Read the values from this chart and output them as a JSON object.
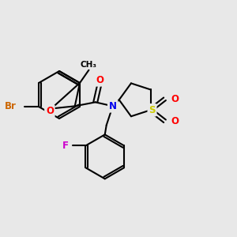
{
  "bg_color": "#e8e8e8",
  "bond_color": "#000000",
  "bond_width": 1.5,
  "atom_colors": {
    "Br": "#cc6600",
    "O": "#ff0000",
    "N": "#0000ee",
    "S": "#cccc00",
    "F": "#cc00cc",
    "C": "#000000"
  },
  "font_size_atom": 8.5,
  "font_size_methyl": 7.5
}
